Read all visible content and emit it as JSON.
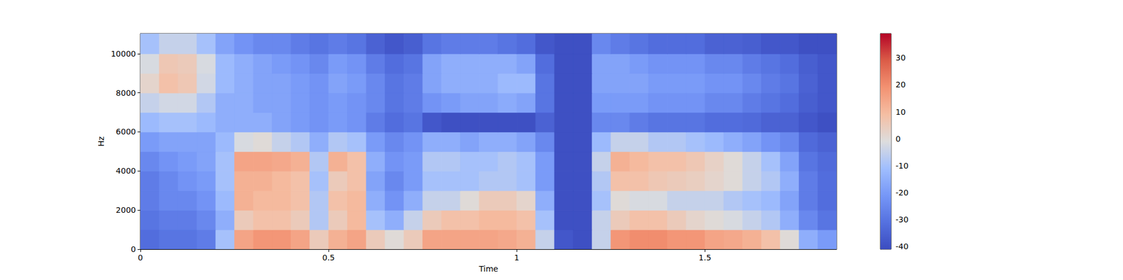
{
  "chart_data": {
    "type": "heatmap",
    "xlabel": "Time",
    "ylabel": "Hz",
    "xlim": [
      0,
      1.85
    ],
    "xticks": [
      0,
      0.5,
      1,
      1.5
    ],
    "ylim": [
      0,
      11025
    ],
    "yticks": [
      0,
      2000,
      4000,
      6000,
      8000,
      10000
    ],
    "time_edges": [
      0,
      0.05,
      0.1,
      0.15,
      0.2,
      0.25,
      0.3,
      0.35,
      0.4,
      0.45,
      0.5,
      0.55,
      0.6,
      0.65,
      0.7,
      0.75,
      0.8,
      0.85,
      0.9,
      0.95,
      1.0,
      1.05,
      1.1,
      1.15,
      1.2,
      1.25,
      1.3,
      1.35,
      1.4,
      1.45,
      1.5,
      1.55,
      1.6,
      1.65,
      1.7,
      1.75,
      1.8,
      1.85
    ],
    "freq_edges": [
      0,
      1000,
      2000,
      3000,
      4000,
      5000,
      6000,
      7000,
      8000,
      9000,
      10000,
      11025
    ],
    "cells": [
      [
        -32,
        -30,
        -30,
        -28,
        -10,
        15,
        18,
        18,
        15,
        5,
        12,
        15,
        5,
        0,
        5,
        15,
        15,
        15,
        15,
        14,
        12,
        -5,
        -38,
        -40,
        -5,
        18,
        20,
        20,
        18,
        18,
        15,
        14,
        12,
        8,
        0,
        -15,
        -20
      ],
      [
        -30,
        -28,
        -28,
        -25,
        -15,
        5,
        8,
        8,
        5,
        -8,
        5,
        10,
        -10,
        -15,
        -5,
        5,
        8,
        8,
        10,
        10,
        8,
        -10,
        -40,
        -40,
        -5,
        5,
        8,
        8,
        5,
        2,
        0,
        -2,
        -5,
        -8,
        -15,
        -25,
        -30
      ],
      [
        -28,
        -25,
        -25,
        -22,
        -12,
        12,
        10,
        10,
        8,
        -8,
        8,
        10,
        -15,
        -22,
        -15,
        -5,
        -5,
        0,
        5,
        5,
        2,
        -15,
        -40,
        -40,
        -10,
        0,
        -2,
        -2,
        -5,
        -5,
        -5,
        -8,
        -10,
        -12,
        -18,
        -28,
        -32
      ],
      [
        -28,
        -25,
        -22,
        -20,
        -10,
        12,
        12,
        10,
        8,
        -10,
        5,
        8,
        -18,
        -25,
        -20,
        -10,
        -10,
        -10,
        -8,
        -8,
        -10,
        -20,
        -40,
        -40,
        -8,
        8,
        8,
        6,
        5,
        4,
        2,
        0,
        -5,
        -8,
        -15,
        -28,
        -32
      ],
      [
        -25,
        -22,
        -20,
        -18,
        -10,
        15,
        15,
        14,
        12,
        -8,
        12,
        8,
        -15,
        -22,
        -20,
        -8,
        -8,
        -10,
        -10,
        -8,
        -10,
        -20,
        -40,
        -40,
        -5,
        12,
        10,
        8,
        8,
        6,
        3,
        0,
        -5,
        -10,
        -18,
        -30,
        -33
      ],
      [
        -20,
        -18,
        -18,
        -18,
        -12,
        -2,
        0,
        -5,
        -8,
        -15,
        -8,
        -10,
        -20,
        -25,
        -22,
        -15,
        -15,
        -18,
        -15,
        -15,
        -18,
        -25,
        -40,
        -40,
        -12,
        -5,
        -5,
        -8,
        -8,
        -10,
        -12,
        -15,
        -18,
        -22,
        -25,
        -33,
        -35
      ],
      [
        -12,
        -10,
        -10,
        -12,
        -15,
        -15,
        -15,
        -18,
        -20,
        -22,
        -20,
        -22,
        -28,
        -32,
        -30,
        -38,
        -40,
        -40,
        -40,
        -40,
        -40,
        -35,
        -40,
        -40,
        -25,
        -25,
        -28,
        -30,
        -30,
        -30,
        -32,
        -32,
        -33,
        -35,
        -35,
        -38,
        -40
      ],
      [
        -5,
        -3,
        -3,
        -8,
        -15,
        -15,
        -18,
        -18,
        -20,
        -22,
        -20,
        -22,
        -25,
        -30,
        -28,
        -22,
        -20,
        -18,
        -18,
        -16,
        -18,
        -30,
        -40,
        -40,
        -20,
        -20,
        -20,
        -22,
        -22,
        -22,
        -25,
        -25,
        -28,
        -30,
        -32,
        -36,
        -38
      ],
      [
        2,
        8,
        6,
        -3,
        -12,
        -15,
        -18,
        -18,
        -20,
        -22,
        -18,
        -20,
        -25,
        -30,
        -28,
        -18,
        -15,
        -15,
        -15,
        -12,
        -12,
        -30,
        -40,
        -40,
        -18,
        -18,
        -18,
        -20,
        -20,
        -20,
        -22,
        -22,
        -25,
        -28,
        -30,
        -35,
        -38
      ],
      [
        -2,
        6,
        5,
        -2,
        -12,
        -15,
        -18,
        -20,
        -22,
        -25,
        -20,
        -22,
        -28,
        -32,
        -30,
        -18,
        -15,
        -15,
        -15,
        -15,
        -18,
        -32,
        -40,
        -40,
        -18,
        -18,
        -20,
        -22,
        -22,
        -22,
        -25,
        -25,
        -28,
        -30,
        -32,
        -36,
        -38
      ],
      [
        -10,
        -5,
        -5,
        -10,
        -18,
        -22,
        -25,
        -25,
        -28,
        -30,
        -28,
        -30,
        -35,
        -38,
        -36,
        -30,
        -28,
        -28,
        -28,
        -30,
        -32,
        -38,
        -40,
        -40,
        -25,
        -28,
        -30,
        -32,
        -32,
        -32,
        -35,
        -35,
        -36,
        -38,
        -38,
        -40,
        -40
      ]
    ],
    "clim": [
      -41,
      39
    ],
    "cticks": [
      -40,
      -30,
      -20,
      -10,
      0,
      10,
      20,
      30
    ]
  }
}
